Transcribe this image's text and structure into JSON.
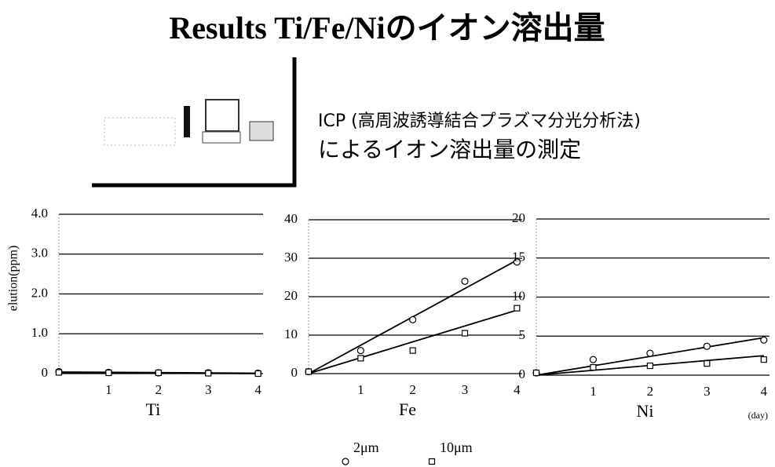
{
  "title": "Results Ti/Fe/Niのイオン溶出量",
  "description": [
    "ICP (高周波誘導結合プラズマ分光分析法)",
    "によるイオン溶出量の測定"
  ],
  "legend": [
    {
      "name": "2μm",
      "marker": "circle"
    },
    {
      "name": "10μm",
      "marker": "square"
    }
  ],
  "chart_data": [
    {
      "type": "scatter",
      "ylabel": "elution(ppm)",
      "xlabel": "Ti",
      "x": [
        0,
        1,
        2,
        3,
        4
      ],
      "xlim": [
        0,
        4.1
      ],
      "xticks": [
        1,
        2,
        3,
        4
      ],
      "fit_x": [
        0,
        4
      ],
      "ylim": [
        0,
        4
      ],
      "yticks": [
        0,
        {
          "value": 1,
          "label": "1.0"
        },
        {
          "value": 2,
          "label": "2.0"
        },
        {
          "value": 3,
          "label": "3.0"
        },
        {
          "value": 4,
          "label": "4.0"
        }
      ],
      "grid": true,
      "series": [
        {
          "marker": "circle",
          "color": "#000000",
          "values": [
            0.05,
            0.03,
            0.02,
            0.02,
            0.01
          ],
          "fit": [
            0.04,
            0.01
          ]
        },
        {
          "marker": "square",
          "color": "#000000",
          "values": [
            0.03,
            0.02,
            0.02,
            0.01,
            0.0
          ],
          "fit": [
            0.03,
            0.0
          ]
        }
      ]
    },
    {
      "type": "scatter",
      "xlabel": "Fe",
      "x": [
        0,
        1,
        2,
        3,
        4
      ],
      "xlim": [
        0,
        4.1
      ],
      "xticks": [
        1,
        2,
        3,
        4
      ],
      "fit_x": [
        0,
        4
      ],
      "ylim": [
        0,
        40
      ],
      "yticks": [
        0,
        10,
        20,
        30,
        40
      ],
      "grid": true,
      "series": [
        {
          "marker": "circle",
          "color": "#000000",
          "values": [
            0.5,
            6,
            14,
            24,
            29
          ],
          "fit": [
            0,
            29.5
          ]
        },
        {
          "marker": "square",
          "color": "#000000",
          "values": [
            0.5,
            4,
            6,
            10.5,
            17
          ],
          "fit": [
            0,
            16.5
          ]
        }
      ]
    },
    {
      "type": "scatter",
      "xlabel": "Ni",
      "xunit": "(day)",
      "x": [
        0,
        1,
        2,
        3,
        4
      ],
      "xlim": [
        0,
        4.1
      ],
      "xticks": [
        1,
        2,
        3,
        4
      ],
      "fit_x": [
        0,
        4
      ],
      "ylim": [
        0,
        20
      ],
      "yticks": [
        0,
        5,
        10,
        15,
        20
      ],
      "grid": true,
      "series": [
        {
          "marker": "circle",
          "color": "#000000",
          "values": [
            0.3,
            2,
            2.8,
            3.7,
            4.5
          ],
          "fit": [
            0,
            4.8
          ]
        },
        {
          "marker": "square",
          "color": "#000000",
          "values": [
            0.3,
            1,
            1.2,
            1.5,
            2
          ],
          "fit": [
            0,
            2.5
          ]
        }
      ]
    }
  ]
}
